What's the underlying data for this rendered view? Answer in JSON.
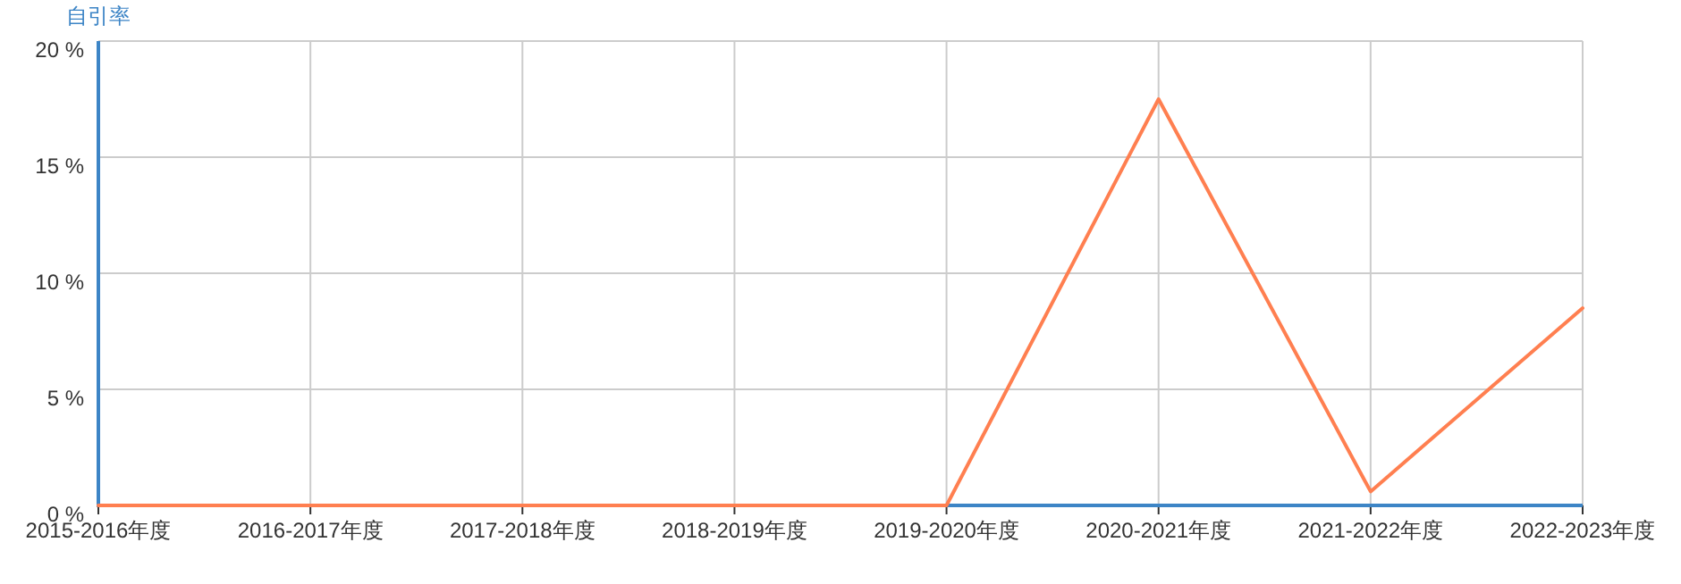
{
  "chart_data": {
    "type": "line",
    "ylabel": "自引率",
    "categories": [
      "2015-2016年度",
      "2016-2017年度",
      "2017-2018年度",
      "2018-2019年度",
      "2019-2020年度",
      "2020-2021年度",
      "2021-2022年度",
      "2022-2023年度"
    ],
    "series": [
      {
        "color": "#ff7f50",
        "values": [
          0,
          0,
          0,
          0,
          0,
          17.5,
          0.6,
          8.5
        ]
      }
    ],
    "ylim": [
      0,
      20
    ],
    "yticks": [
      {
        "value": 0,
        "label": "0 %"
      },
      {
        "value": 5,
        "label": "5 %"
      },
      {
        "value": 10,
        "label": "10 %"
      },
      {
        "value": 15,
        "label": "15 %"
      },
      {
        "value": 20,
        "label": "20 %"
      }
    ],
    "grid": true,
    "marker": "none",
    "line_style": "solid"
  }
}
